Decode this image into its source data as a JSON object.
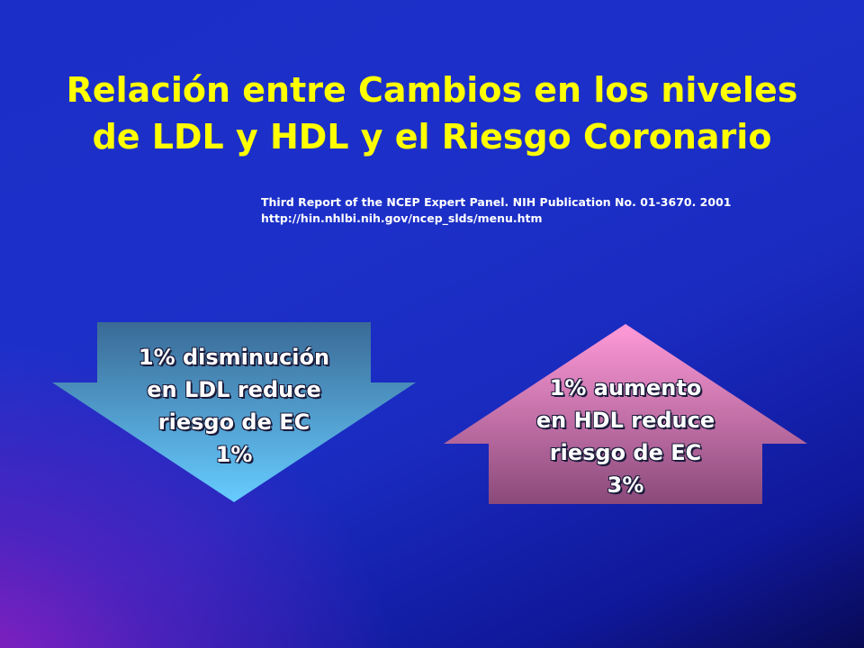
{
  "title": {
    "line1": "Relación entre Cambios en los niveles",
    "line2": "de LDL y HDL y el Riesgo Coronario"
  },
  "reference": {
    "line1": "Third Report of the NCEP Expert Panel. NIH Publication No. 01-3670.  2001",
    "line2": "http://hin.nhlbi.nih.gov/ncep_slds/menu.htm"
  },
  "ldl_arrow": {
    "direction": "down",
    "lines": [
      "1% disminución",
      "en LDL reduce",
      "riesgo de EC",
      "1%"
    ],
    "gradient_top": "#3a6a96",
    "gradient_bottom": "#66ccff"
  },
  "hdl_arrow": {
    "direction": "up",
    "lines": [
      "1% aumento",
      "en HDL reduce",
      "riesgo de EC",
      "3%"
    ],
    "gradient_top": "#ff9ad8",
    "gradient_bottom": "#8a4a7a"
  },
  "colors": {
    "title": "#ffff00",
    "reference": "#ffffff"
  }
}
